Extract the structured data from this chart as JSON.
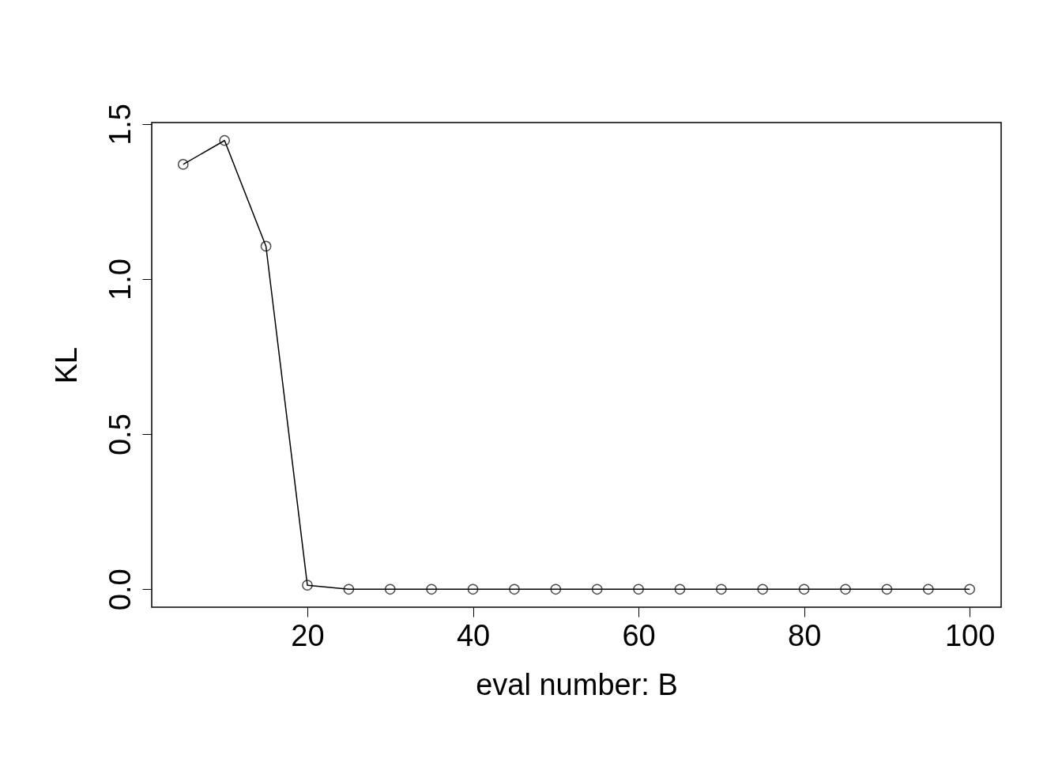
{
  "chart_data": {
    "type": "line",
    "xlabel": "eval number: B",
    "ylabel": "KL",
    "x": [
      5,
      10,
      15,
      20,
      25,
      30,
      35,
      40,
      45,
      50,
      55,
      60,
      65,
      70,
      75,
      80,
      85,
      90,
      95,
      100
    ],
    "series": [
      {
        "color": "#000000",
        "values": [
          1.37,
          1.447,
          1.106,
          0.013,
          0,
          0,
          0,
          0,
          0,
          0,
          0,
          0,
          0,
          0,
          0,
          0,
          0,
          0,
          0,
          0
        ]
      }
    ],
    "xlim": [
      1.2,
      103.8
    ],
    "ylim": [
      -0.058,
      1.505
    ],
    "xticks": [
      20,
      40,
      60,
      80,
      100
    ],
    "yticks": [
      {
        "value": 0,
        "label": "0.0"
      },
      {
        "value": 0.5,
        "label": "0.5"
      },
      {
        "value": 1,
        "label": "1.0"
      },
      {
        "value": 1.5,
        "label": "1.5"
      }
    ],
    "marker": "circle",
    "line_style": "solid",
    "grid": false
  }
}
